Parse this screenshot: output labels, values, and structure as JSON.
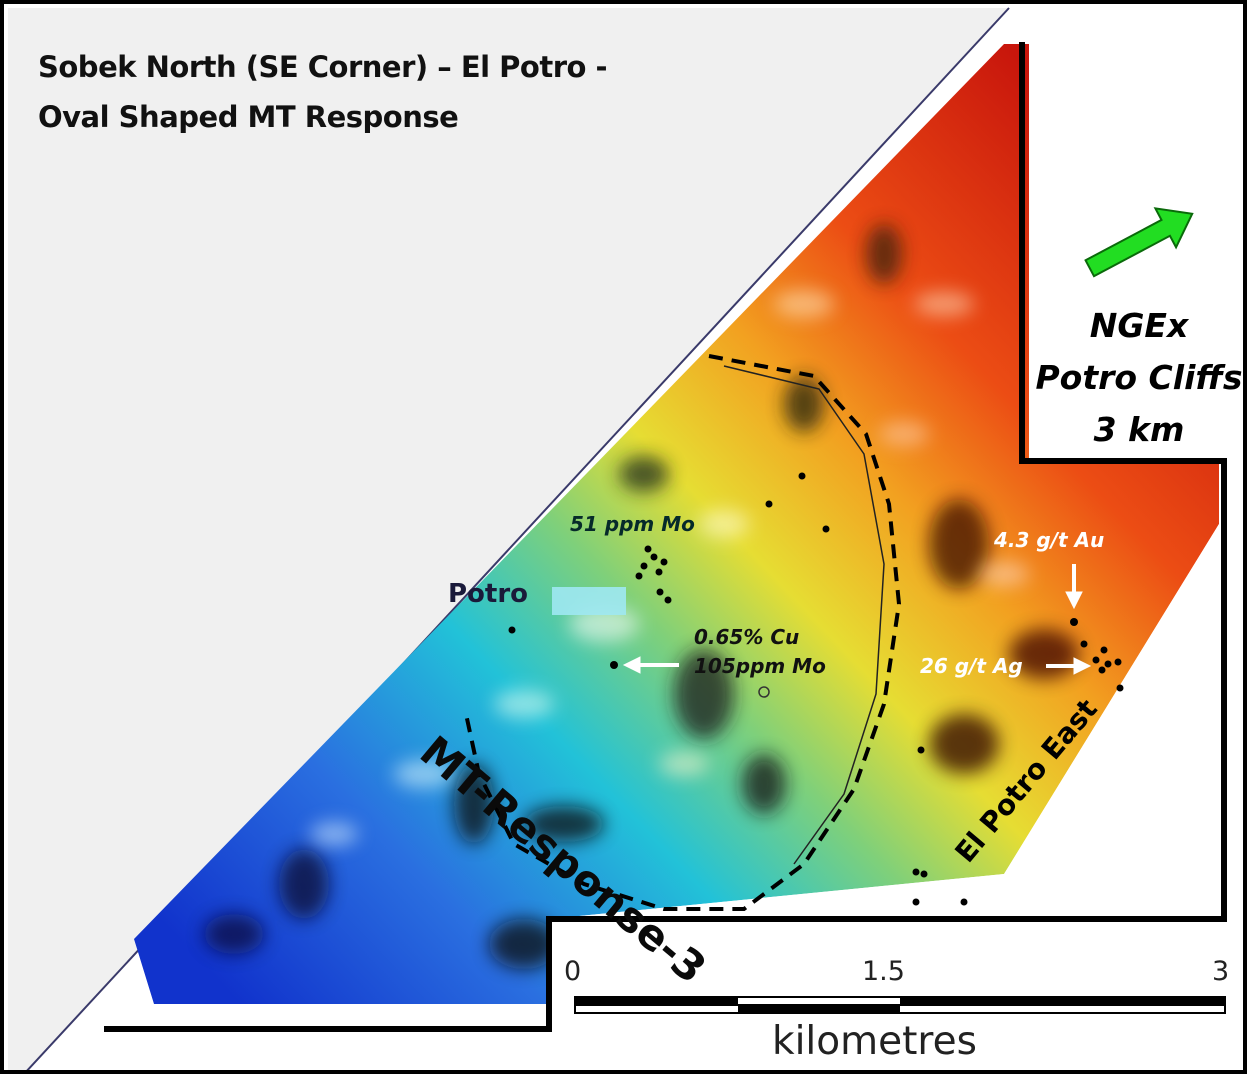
{
  "title": {
    "line1": "Sobek North (SE Corner) – El Potro -",
    "line2": "Oval Shaped MT Response"
  },
  "north_arrow": {
    "icon": "green-direction-arrow-icon",
    "color": "#22dd22",
    "label_line1": "NGEx",
    "label_line2": "Potro Cliffs",
    "label_line3": "3 km"
  },
  "map_labels": {
    "potro": "Potro",
    "mt_response": "MT-Response-3",
    "el_potro_east": "El Potro East"
  },
  "annotations": {
    "mo_51": "51 ppm Mo",
    "cu_line1": "0.65% Cu",
    "cu_line2": "105ppm Mo",
    "au": "4.3 g/t Au",
    "ag": "26 g/t Ag"
  },
  "scale_bar": {
    "tick_0": "0",
    "tick_mid": "1.5",
    "tick_max": "3",
    "unit": "kilometres"
  },
  "colors": {
    "low_response": "#1a3fd6",
    "high_response": "#e01a0a",
    "outline": "#000000"
  }
}
